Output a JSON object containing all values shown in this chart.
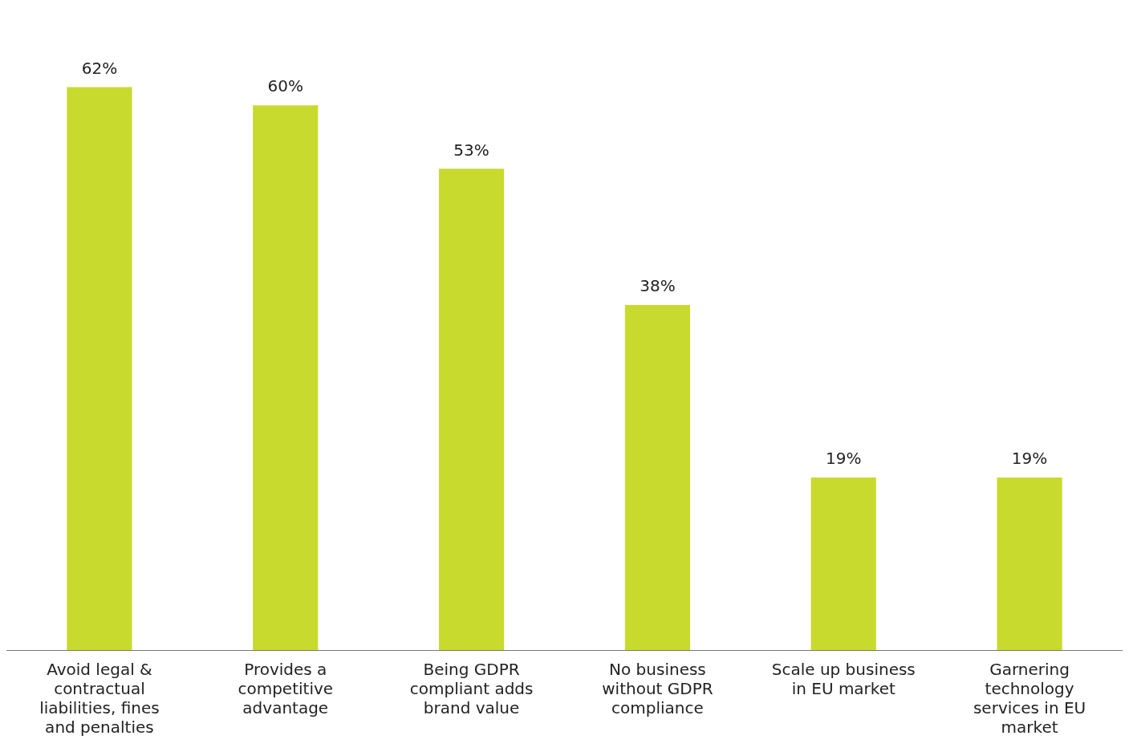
{
  "chart_data": {
    "type": "bar",
    "categories": [
      "Avoid legal & contractual liabilities, fines and penalties",
      "Provides a competitive advantage",
      "Being GDPR compliant adds brand value",
      "No business without GDPR compliance",
      "Scale up business in EU market",
      "Garnering technology services in EU market"
    ],
    "values": [
      62,
      60,
      53,
      38,
      19,
      19
    ],
    "value_labels": [
      "62%",
      "60%",
      "53%",
      "38%",
      "19%",
      "19%"
    ],
    "color": "#c8da2e",
    "grid": false,
    "legend": false
  }
}
